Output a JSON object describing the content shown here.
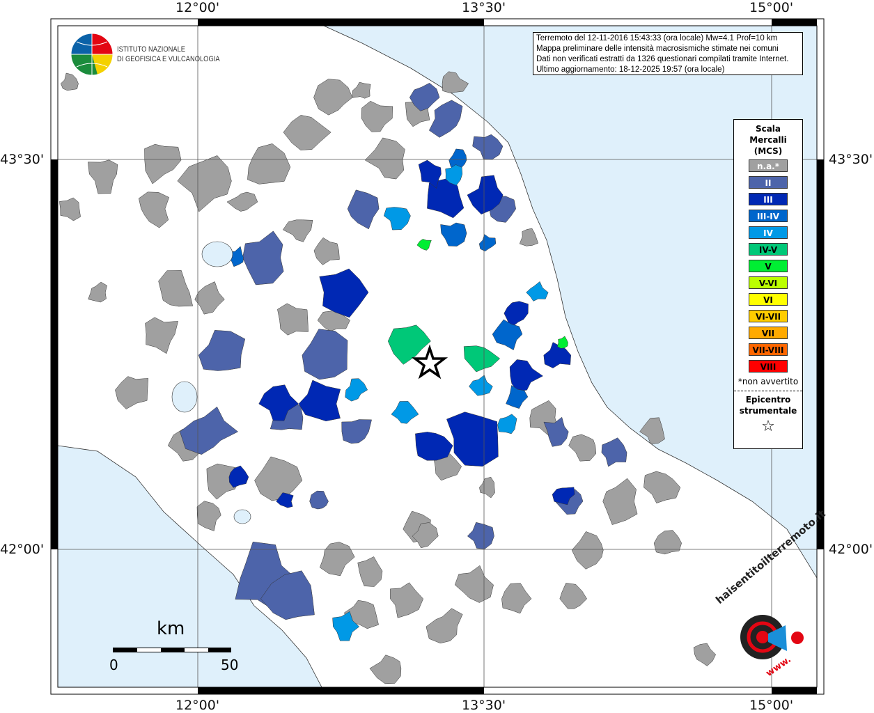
{
  "ticks": {
    "lon": [
      "12°00'",
      "13°30'",
      "15°00'"
    ],
    "lat": [
      "43°30'",
      "42°00'"
    ]
  },
  "info": {
    "line1": "Terremoto del 12-11-2016 15:43:33 (ora locale) Mw=4.1 Prof=10 km",
    "line2": "Mappa preliminare delle intensità macrosismiche stimate nei comuni",
    "line3": "Dati non verificati estratti da 1326 questionari compilati tramite Internet.",
    "line4": "Ultimo aggiornamento: 18-12-2025 19:57 (ora locale)"
  },
  "logo": {
    "line1": "ISTITUTO NAZIONALE",
    "line2": "DI GEOFISICA E VULCANOLOGIA"
  },
  "legend": {
    "title1": "Scala",
    "title2": "Mercalli",
    "title3": "(MCS)",
    "classes": [
      {
        "label": "n.a.*",
        "color": "#a0a0a0",
        "text": "#ffffff"
      },
      {
        "label": "II",
        "color": "#4d64aa",
        "text": "#ffffff"
      },
      {
        "label": "III",
        "color": "#0028b4",
        "text": "#ffffff"
      },
      {
        "label": "III-IV",
        "color": "#0066cc",
        "text": "#ffffff"
      },
      {
        "label": "IV",
        "color": "#0099e6",
        "text": "#ffffff"
      },
      {
        "label": "IV-V",
        "color": "#00c878",
        "text": "#000000"
      },
      {
        "label": "V",
        "color": "#00ee33",
        "text": "#000000"
      },
      {
        "label": "V-VI",
        "color": "#bbff00",
        "text": "#000000"
      },
      {
        "label": "VI",
        "color": "#ffff00",
        "text": "#000000"
      },
      {
        "label": "VI-VII",
        "color": "#ffcc00",
        "text": "#000000"
      },
      {
        "label": "VII",
        "color": "#ffaa00",
        "text": "#000000"
      },
      {
        "label": "VII-VIII",
        "color": "#ff6600",
        "text": "#000000"
      },
      {
        "label": "VIII",
        "color": "#ff0000",
        "text": "#000000"
      }
    ],
    "note": "*non avvertito",
    "epi1": "Epicentro",
    "epi2": "strumentale"
  },
  "scale_bar": {
    "unit": "km",
    "min": "0",
    "max": "50"
  },
  "watermark": {
    "text": "haisentitoilterremoto.it",
    "url": "www."
  },
  "colors": {
    "sea": "#dff0fb",
    "land": "#ffffff"
  }
}
